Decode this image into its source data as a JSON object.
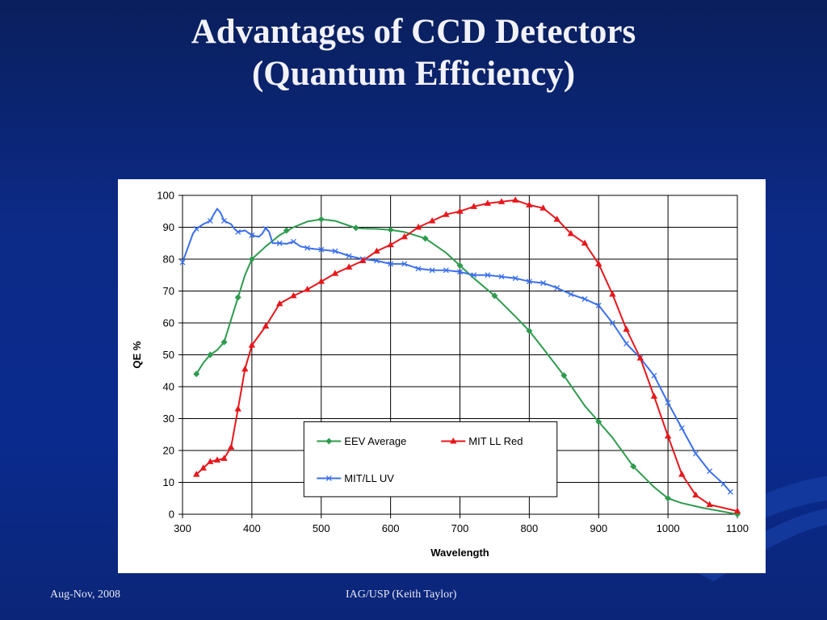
{
  "slide": {
    "title_line1": "Advantages of CCD Detectors",
    "title_line2": "(Quantum Efficiency)",
    "footer_left": "Aug-Nov, 2008",
    "footer_center": "IAG/USP (Keith Taylor)"
  },
  "colors": {
    "background": "#0c2a86",
    "title": "#f2f2fa",
    "eev": "#2e9b4e",
    "mit_red": "#e8161b",
    "mit_uv": "#3a6ff0"
  },
  "chart_data": {
    "type": "line",
    "xlabel": "Wavelength",
    "ylabel": "QE %",
    "xlim": [
      300,
      1100
    ],
    "ylim": [
      0,
      100
    ],
    "xticks": [
      300,
      400,
      500,
      600,
      700,
      800,
      900,
      1000,
      1100
    ],
    "yticks": [
      0,
      10,
      20,
      30,
      40,
      50,
      60,
      70,
      80,
      90,
      100
    ],
    "grid": true,
    "legend_position": "bottom-center",
    "series": [
      {
        "name": "EEV Average",
        "color": "#2e9b4e",
        "marker": "diamond",
        "marker_x": [
          320,
          340,
          360,
          380,
          400,
          450,
          500,
          550,
          600,
          650,
          700,
          750,
          800,
          850,
          900,
          950,
          1000,
          1100
        ],
        "marker_y": [
          44,
          50,
          54,
          68,
          80,
          89,
          92.5,
          89.8,
          89.2,
          86.5,
          78,
          68.5,
          57.5,
          43.5,
          29,
          15,
          5,
          0
        ],
        "x": [
          320,
          330,
          340,
          350,
          360,
          370,
          380,
          390,
          400,
          420,
          440,
          460,
          480,
          500,
          520,
          540,
          550,
          560,
          580,
          600,
          620,
          650,
          680,
          700,
          720,
          750,
          780,
          800,
          820,
          850,
          880,
          900,
          920,
          950,
          980,
          1000,
          1020,
          1050,
          1080,
          1100
        ],
        "y": [
          44,
          47.5,
          50,
          51.5,
          54,
          61,
          68,
          75,
          80,
          84,
          87.5,
          90,
          91.8,
          92.5,
          92,
          90.5,
          89.8,
          89.6,
          89.5,
          89.2,
          88.5,
          86.5,
          82,
          78,
          74,
          68.5,
          62,
          57.5,
          52,
          43.5,
          34,
          29,
          24,
          15,
          8.5,
          5,
          3.5,
          2,
          0.8,
          0
        ]
      },
      {
        "name": "MIT LL Red",
        "color": "#e8161b",
        "marker": "triangle",
        "x": [
          320,
          330,
          340,
          350,
          360,
          370,
          380,
          390,
          400,
          420,
          440,
          460,
          480,
          500,
          520,
          540,
          560,
          580,
          600,
          620,
          640,
          660,
          680,
          700,
          720,
          740,
          760,
          780,
          800,
          820,
          840,
          860,
          880,
          900,
          920,
          940,
          960,
          980,
          1000,
          1020,
          1040,
          1060,
          1100
        ],
        "y": [
          12.5,
          14.5,
          16.5,
          17,
          17.5,
          21,
          33,
          45.5,
          53,
          59,
          66,
          68.5,
          70.5,
          73,
          75.5,
          77.5,
          79.5,
          82.5,
          84.5,
          87,
          90,
          92,
          94,
          95,
          96.5,
          97.5,
          98,
          98.5,
          97,
          96,
          92.5,
          88,
          85,
          78.5,
          69,
          58,
          49,
          37,
          24.5,
          12.5,
          6,
          3,
          1
        ]
      },
      {
        "name": "MIT/LL UV",
        "color": "#3a6ff0",
        "marker": "x",
        "marker_x": [
          300,
          320,
          340,
          360,
          380,
          400,
          420,
          440,
          460,
          480,
          500,
          520,
          540,
          560,
          580,
          600,
          620,
          640,
          660,
          680,
          700,
          720,
          740,
          760,
          780,
          800,
          820,
          840,
          860,
          880,
          900,
          920,
          940,
          960,
          980,
          1000,
          1020,
          1040,
          1060,
          1080,
          1090
        ],
        "marker_y": [
          79,
          89.5,
          92,
          92,
          88.5,
          87.5,
          89.5,
          85,
          85.5,
          83.5,
          83,
          82.5,
          81,
          80,
          79.5,
          78.5,
          78.5,
          77,
          76.5,
          76.5,
          76,
          75,
          75,
          74.5,
          74,
          73,
          72.5,
          71,
          69,
          67.5,
          65.5,
          60,
          53.5,
          49,
          43.5,
          35,
          27,
          19,
          13.5,
          9.5,
          7
        ],
        "x": [
          300,
          305,
          310,
          315,
          320,
          330,
          340,
          345,
          350,
          355,
          360,
          370,
          375,
          380,
          390,
          400,
          410,
          415,
          420,
          425,
          430,
          440,
          450,
          460,
          470,
          480,
          490,
          500,
          520,
          540,
          560,
          580,
          600,
          620,
          640,
          660,
          680,
          700,
          720,
          740,
          760,
          780,
          800,
          820,
          840,
          860,
          880,
          900,
          920,
          940,
          960,
          980,
          1000,
          1020,
          1040,
          1060,
          1080,
          1090
        ],
        "y": [
          79,
          82,
          85,
          88,
          89.5,
          91,
          92,
          94,
          95.8,
          94.5,
          92,
          91,
          89.5,
          88.5,
          89,
          87.5,
          87,
          88,
          89.8,
          88.5,
          85,
          85,
          84.8,
          85.5,
          84,
          83.5,
          83.2,
          83,
          82.5,
          81,
          80,
          79.5,
          78.5,
          78.5,
          77,
          76.5,
          76.5,
          76,
          75,
          75,
          74.5,
          74,
          73,
          72.5,
          71,
          69,
          67.5,
          65.5,
          60,
          53.5,
          49,
          43.5,
          35,
          27,
          19,
          13.5,
          9.5,
          7
        ]
      }
    ]
  }
}
